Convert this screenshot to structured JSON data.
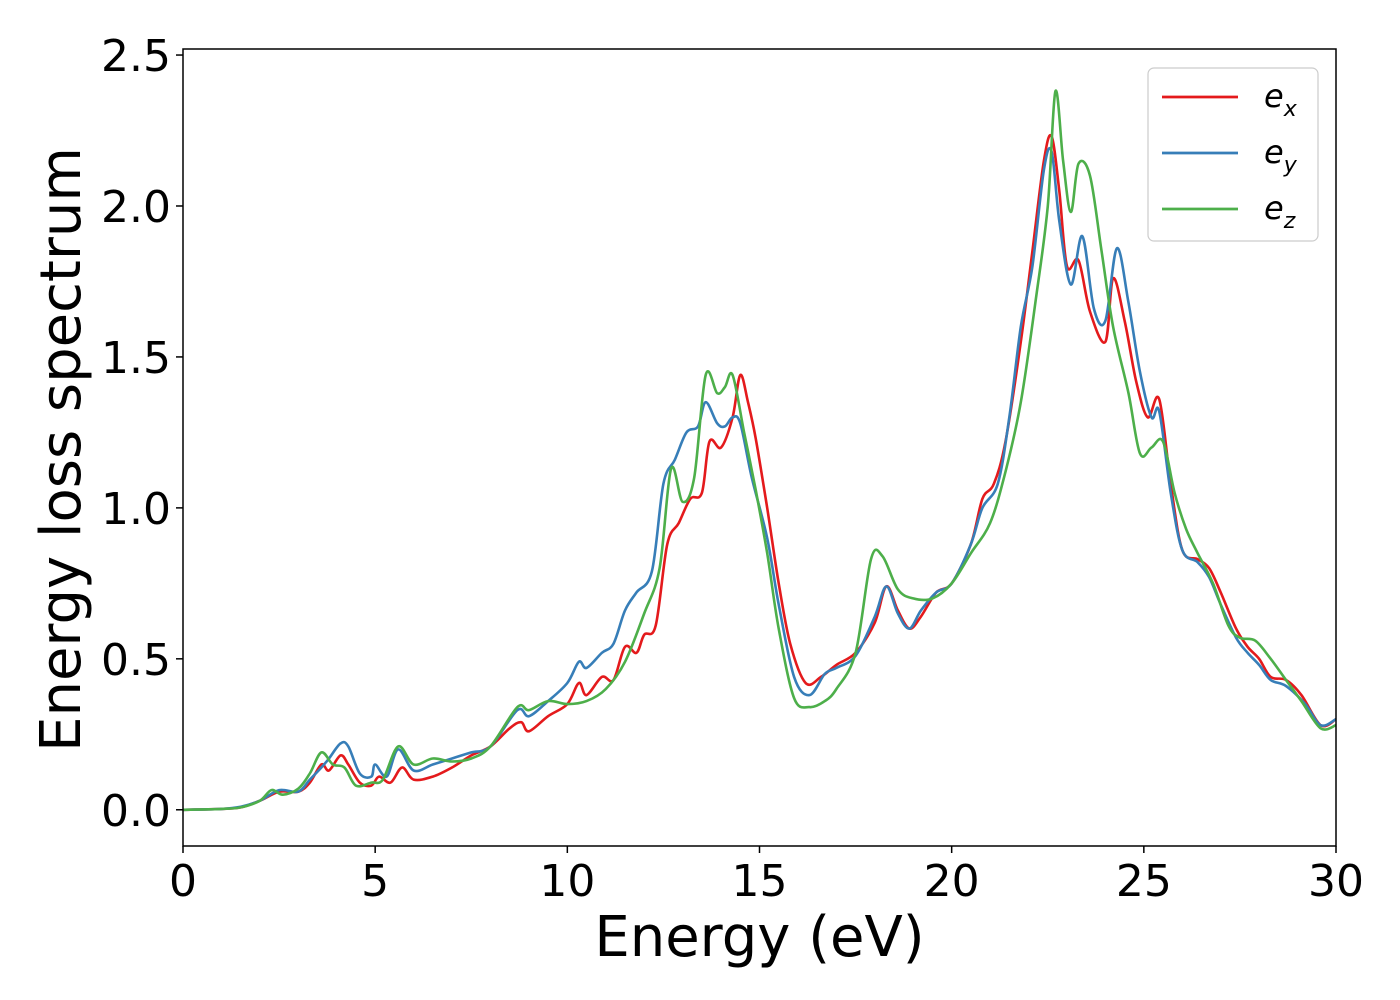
{
  "chart_data": {
    "type": "line",
    "title": "",
    "xlabel": "Energy (eV)",
    "ylabel": "Energy loss spectrum",
    "xlim": [
      0,
      30
    ],
    "ylim": [
      -0.12,
      2.52
    ],
    "xticks": [
      0,
      5,
      10,
      15,
      20,
      25,
      30
    ],
    "yticks": [
      0.0,
      0.5,
      1.0,
      1.5,
      2.0,
      2.5
    ],
    "xtick_labels": [
      "0",
      "5",
      "10",
      "15",
      "20",
      "25",
      "30"
    ],
    "ytick_labels": [
      "0.0",
      "0.5",
      "1.0",
      "1.5",
      "2.0",
      "2.5"
    ],
    "grid": false,
    "legend_position": "top-right",
    "series": [
      {
        "name": "e_x",
        "legend_base": "e",
        "legend_sub": "x",
        "color": "#e41a1c",
        "points": [
          [
            0,
            0
          ],
          [
            1,
            0.003
          ],
          [
            1.5,
            0.008
          ],
          [
            2,
            0.03
          ],
          [
            2.5,
            0.06
          ],
          [
            3,
            0.06
          ],
          [
            3.3,
            0.09
          ],
          [
            3.6,
            0.15
          ],
          [
            3.8,
            0.13
          ],
          [
            4.1,
            0.18
          ],
          [
            4.3,
            0.15
          ],
          [
            4.6,
            0.09
          ],
          [
            4.9,
            0.08
          ],
          [
            5.1,
            0.11
          ],
          [
            5.4,
            0.09
          ],
          [
            5.7,
            0.14
          ],
          [
            6,
            0.1
          ],
          [
            6.5,
            0.11
          ],
          [
            7,
            0.14
          ],
          [
            7.5,
            0.18
          ],
          [
            8,
            0.21
          ],
          [
            8.5,
            0.27
          ],
          [
            8.8,
            0.29
          ],
          [
            9,
            0.26
          ],
          [
            9.5,
            0.31
          ],
          [
            10,
            0.35
          ],
          [
            10.3,
            0.42
          ],
          [
            10.5,
            0.38
          ],
          [
            10.9,
            0.44
          ],
          [
            11.2,
            0.43
          ],
          [
            11.5,
            0.54
          ],
          [
            11.8,
            0.52
          ],
          [
            12,
            0.58
          ],
          [
            12.3,
            0.61
          ],
          [
            12.6,
            0.88
          ],
          [
            12.9,
            0.95
          ],
          [
            13.2,
            1.03
          ],
          [
            13.5,
            1.05
          ],
          [
            13.7,
            1.22
          ],
          [
            14,
            1.2
          ],
          [
            14.3,
            1.3
          ],
          [
            14.5,
            1.44
          ],
          [
            14.7,
            1.35
          ],
          [
            14.9,
            1.23
          ],
          [
            15.2,
            1.0
          ],
          [
            15.5,
            0.75
          ],
          [
            15.8,
            0.55
          ],
          [
            16.2,
            0.42
          ],
          [
            16.6,
            0.44
          ],
          [
            17,
            0.48
          ],
          [
            17.5,
            0.52
          ],
          [
            18,
            0.62
          ],
          [
            18.3,
            0.74
          ],
          [
            18.6,
            0.66
          ],
          [
            18.9,
            0.6
          ],
          [
            19.2,
            0.64
          ],
          [
            19.6,
            0.72
          ],
          [
            20,
            0.75
          ],
          [
            20.5,
            0.88
          ],
          [
            20.8,
            1.03
          ],
          [
            21.1,
            1.08
          ],
          [
            21.4,
            1.22
          ],
          [
            21.8,
            1.55
          ],
          [
            22.1,
            1.85
          ],
          [
            22.4,
            2.15
          ],
          [
            22.6,
            2.23
          ],
          [
            22.8,
            2.05
          ],
          [
            23,
            1.8
          ],
          [
            23.3,
            1.82
          ],
          [
            23.6,
            1.65
          ],
          [
            24,
            1.55
          ],
          [
            24.2,
            1.76
          ],
          [
            24.5,
            1.62
          ],
          [
            24.8,
            1.42
          ],
          [
            25.1,
            1.3
          ],
          [
            25.4,
            1.36
          ],
          [
            25.7,
            1.08
          ],
          [
            26,
            0.86
          ],
          [
            26.4,
            0.83
          ],
          [
            26.7,
            0.8
          ],
          [
            27,
            0.72
          ],
          [
            27.4,
            0.6
          ],
          [
            27.7,
            0.54
          ],
          [
            28,
            0.5
          ],
          [
            28.3,
            0.44
          ],
          [
            28.7,
            0.43
          ],
          [
            29.1,
            0.38
          ],
          [
            29.6,
            0.28
          ],
          [
            30,
            0.3
          ]
        ]
      },
      {
        "name": "e_y",
        "legend_base": "e",
        "legend_sub": "y",
        "color": "#377eb8",
        "points": [
          [
            0,
            0
          ],
          [
            1,
            0.003
          ],
          [
            1.5,
            0.01
          ],
          [
            2,
            0.03
          ],
          [
            2.5,
            0.065
          ],
          [
            3,
            0.06
          ],
          [
            3.3,
            0.1
          ],
          [
            3.6,
            0.14
          ],
          [
            3.8,
            0.17
          ],
          [
            4.1,
            0.22
          ],
          [
            4.3,
            0.21
          ],
          [
            4.6,
            0.12
          ],
          [
            4.9,
            0.11
          ],
          [
            5,
            0.15
          ],
          [
            5.3,
            0.11
          ],
          [
            5.6,
            0.2
          ],
          [
            6,
            0.13
          ],
          [
            6.5,
            0.15
          ],
          [
            7,
            0.17
          ],
          [
            7.5,
            0.19
          ],
          [
            8,
            0.21
          ],
          [
            8.7,
            0.33
          ],
          [
            9,
            0.31
          ],
          [
            9.5,
            0.36
          ],
          [
            10,
            0.42
          ],
          [
            10.3,
            0.49
          ],
          [
            10.5,
            0.47
          ],
          [
            10.9,
            0.52
          ],
          [
            11.2,
            0.55
          ],
          [
            11.5,
            0.66
          ],
          [
            11.8,
            0.72
          ],
          [
            12.2,
            0.79
          ],
          [
            12.5,
            1.08
          ],
          [
            12.8,
            1.16
          ],
          [
            13.1,
            1.25
          ],
          [
            13.4,
            1.27
          ],
          [
            13.6,
            1.35
          ],
          [
            13.9,
            1.28
          ],
          [
            14.1,
            1.27
          ],
          [
            14.3,
            1.3
          ],
          [
            14.5,
            1.28
          ],
          [
            14.8,
            1.1
          ],
          [
            15.2,
            0.9
          ],
          [
            15.5,
            0.68
          ],
          [
            15.9,
            0.44
          ],
          [
            16.3,
            0.38
          ],
          [
            16.7,
            0.45
          ],
          [
            17,
            0.47
          ],
          [
            17.5,
            0.51
          ],
          [
            18,
            0.64
          ],
          [
            18.3,
            0.74
          ],
          [
            18.6,
            0.65
          ],
          [
            18.9,
            0.6
          ],
          [
            19.2,
            0.66
          ],
          [
            19.6,
            0.72
          ],
          [
            20,
            0.75
          ],
          [
            20.5,
            0.88
          ],
          [
            20.8,
            1.0
          ],
          [
            21.2,
            1.08
          ],
          [
            21.5,
            1.3
          ],
          [
            21.8,
            1.6
          ],
          [
            22.1,
            1.8
          ],
          [
            22.4,
            2.12
          ],
          [
            22.6,
            2.18
          ],
          [
            22.8,
            1.95
          ],
          [
            23.1,
            1.74
          ],
          [
            23.4,
            1.9
          ],
          [
            23.7,
            1.66
          ],
          [
            24,
            1.62
          ],
          [
            24.3,
            1.86
          ],
          [
            24.6,
            1.68
          ],
          [
            24.9,
            1.45
          ],
          [
            25.2,
            1.3
          ],
          [
            25.4,
            1.32
          ],
          [
            25.7,
            1.05
          ],
          [
            26,
            0.86
          ],
          [
            26.4,
            0.82
          ],
          [
            26.7,
            0.77
          ],
          [
            27,
            0.68
          ],
          [
            27.4,
            0.57
          ],
          [
            27.7,
            0.52
          ],
          [
            28,
            0.48
          ],
          [
            28.3,
            0.43
          ],
          [
            28.7,
            0.41
          ],
          [
            29.2,
            0.35
          ],
          [
            29.6,
            0.28
          ],
          [
            30,
            0.3
          ]
        ]
      },
      {
        "name": "e_z",
        "legend_base": "e",
        "legend_sub": "z",
        "color": "#4daf4a",
        "points": [
          [
            0,
            0
          ],
          [
            1,
            0.003
          ],
          [
            1.5,
            0.008
          ],
          [
            2,
            0.03
          ],
          [
            2.3,
            0.065
          ],
          [
            2.6,
            0.05
          ],
          [
            3,
            0.07
          ],
          [
            3.3,
            0.12
          ],
          [
            3.6,
            0.19
          ],
          [
            3.9,
            0.15
          ],
          [
            4.2,
            0.14
          ],
          [
            4.5,
            0.08
          ],
          [
            4.9,
            0.09
          ],
          [
            5.2,
            0.1
          ],
          [
            5.6,
            0.21
          ],
          [
            6,
            0.15
          ],
          [
            6.5,
            0.17
          ],
          [
            7,
            0.16
          ],
          [
            7.5,
            0.17
          ],
          [
            8,
            0.21
          ],
          [
            8.7,
            0.34
          ],
          [
            9,
            0.33
          ],
          [
            9.5,
            0.36
          ],
          [
            10,
            0.35
          ],
          [
            10.5,
            0.36
          ],
          [
            11,
            0.4
          ],
          [
            11.5,
            0.49
          ],
          [
            12,
            0.65
          ],
          [
            12.4,
            0.8
          ],
          [
            12.7,
            1.13
          ],
          [
            13,
            1.02
          ],
          [
            13.3,
            1.1
          ],
          [
            13.6,
            1.44
          ],
          [
            13.9,
            1.38
          ],
          [
            14.1,
            1.4
          ],
          [
            14.3,
            1.44
          ],
          [
            14.6,
            1.25
          ],
          [
            14.9,
            1.06
          ],
          [
            15.2,
            0.85
          ],
          [
            15.5,
            0.6
          ],
          [
            15.9,
            0.37
          ],
          [
            16.3,
            0.34
          ],
          [
            16.7,
            0.36
          ],
          [
            17,
            0.4
          ],
          [
            17.5,
            0.52
          ],
          [
            17.9,
            0.83
          ],
          [
            18.2,
            0.84
          ],
          [
            18.6,
            0.73
          ],
          [
            19,
            0.7
          ],
          [
            19.5,
            0.7
          ],
          [
            20,
            0.75
          ],
          [
            20.5,
            0.85
          ],
          [
            21,
            0.95
          ],
          [
            21.4,
            1.12
          ],
          [
            21.8,
            1.35
          ],
          [
            22.2,
            1.7
          ],
          [
            22.5,
            2.0
          ],
          [
            22.7,
            2.38
          ],
          [
            22.9,
            2.15
          ],
          [
            23.1,
            1.98
          ],
          [
            23.3,
            2.14
          ],
          [
            23.6,
            2.1
          ],
          [
            23.9,
            1.85
          ],
          [
            24.2,
            1.6
          ],
          [
            24.6,
            1.38
          ],
          [
            24.9,
            1.18
          ],
          [
            25.2,
            1.2
          ],
          [
            25.5,
            1.22
          ],
          [
            25.8,
            1.05
          ],
          [
            26.1,
            0.93
          ],
          [
            26.4,
            0.85
          ],
          [
            26.8,
            0.75
          ],
          [
            27.2,
            0.61
          ],
          [
            27.5,
            0.57
          ],
          [
            27.9,
            0.56
          ],
          [
            28.3,
            0.5
          ],
          [
            28.7,
            0.43
          ],
          [
            29.1,
            0.36
          ],
          [
            29.6,
            0.27
          ],
          [
            30,
            0.28
          ]
        ]
      }
    ]
  }
}
